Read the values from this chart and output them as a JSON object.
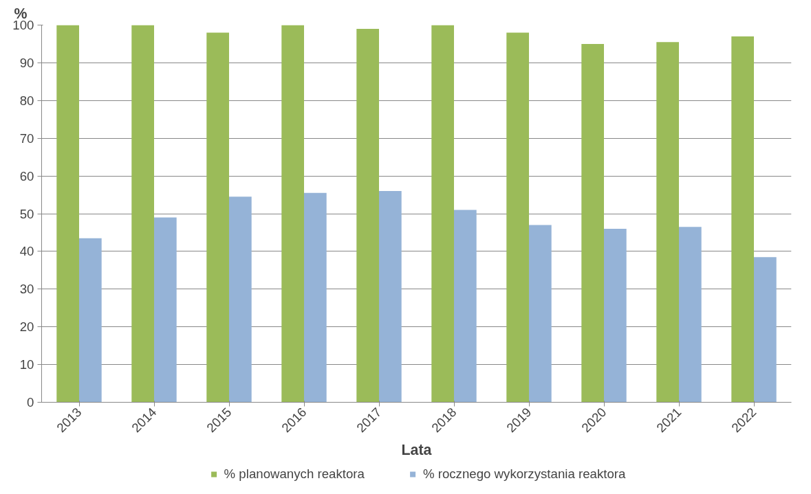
{
  "chart_data": {
    "type": "bar",
    "ylabel": "%",
    "xlabel": "Lata",
    "categories": [
      "2013",
      "2014",
      "2015",
      "2016",
      "2017",
      "2018",
      "2019",
      "2020",
      "2021",
      "2022"
    ],
    "series": [
      {
        "name": "% planowanych reaktora",
        "color": "#9bbb59",
        "values": [
          100,
          100,
          98,
          100,
          99,
          100,
          98,
          95,
          95.5,
          97
        ]
      },
      {
        "name": "% rocznego wykorzystania reaktora",
        "color": "#95b3d7",
        "values": [
          43.5,
          49,
          54.5,
          55.5,
          56,
          51,
          47,
          46,
          46.5,
          38.5
        ]
      }
    ],
    "ylim": [
      0,
      100
    ],
    "yticks": [
      0,
      10,
      20,
      30,
      40,
      50,
      60,
      70,
      80,
      90,
      100
    ],
    "grid": "y",
    "legend": "bottom"
  }
}
